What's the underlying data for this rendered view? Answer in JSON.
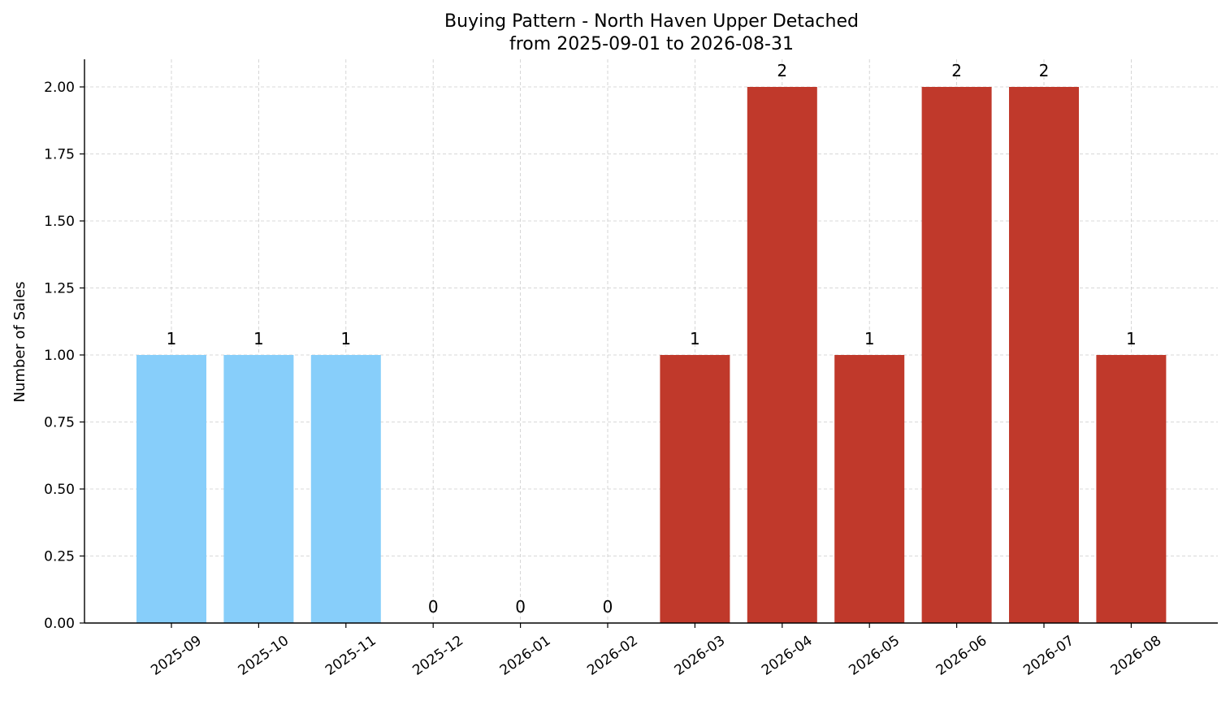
{
  "chart_data": {
    "type": "bar",
    "title": "Buying Pattern - North Haven Upper Detached",
    "subtitle": "from 2025-09-01 to 2026-08-31",
    "xlabel": "",
    "ylabel": "Number of Sales",
    "categories": [
      "2025-09",
      "2025-10",
      "2025-11",
      "2025-12",
      "2026-01",
      "2026-02",
      "2026-03",
      "2026-04",
      "2026-05",
      "2026-06",
      "2026-07",
      "2026-08"
    ],
    "values": [
      1,
      1,
      1,
      0,
      0,
      0,
      1,
      2,
      1,
      2,
      2,
      1
    ],
    "data_labels": [
      "1",
      "1",
      "1",
      "0",
      "0",
      "0",
      "1",
      "2",
      "1",
      "2",
      "2",
      "1"
    ],
    "bar_colors": [
      "#87CEFA",
      "#87CEFA",
      "#87CEFA",
      "#87CEFA",
      "#87CEFA",
      "#87CEFA",
      "#C0392B",
      "#C0392B",
      "#C0392B",
      "#C0392B",
      "#C0392B",
      "#C0392B"
    ],
    "ylim": [
      0,
      2.1
    ],
    "yticks": [
      "0.00",
      "0.25",
      "0.50",
      "0.75",
      "1.00",
      "1.25",
      "1.50",
      "1.75",
      "2.00"
    ],
    "grid": true,
    "x_tick_rotation": "35deg"
  }
}
